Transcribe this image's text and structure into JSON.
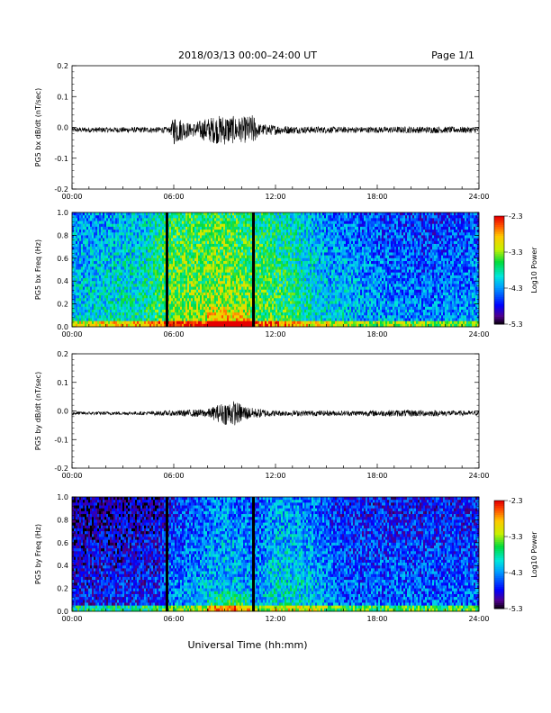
{
  "header": {
    "title": "2018/03/13  00:00–24:00 UT",
    "page": "Page 1/1"
  },
  "xaxis": {
    "title": "Universal Time (hh:mm)",
    "ticks": [
      "00:00",
      "06:00",
      "12:00",
      "18:00",
      "24:00"
    ]
  },
  "colorbar": {
    "ticks": [
      "-2.3",
      "-3.3",
      "-4.3",
      "-5.3"
    ],
    "label": "Log10 Power"
  },
  "chart_data": [
    {
      "type": "line",
      "title": "",
      "ylabel": "PG5 bx dB/dt (nT/sec)",
      "xlim": [
        0,
        24
      ],
      "ylim": [
        -0.2,
        0.2
      ],
      "yticks": [
        "0.2",
        "0.1",
        "0.0",
        "-0.1",
        "-0.2"
      ],
      "envelope": [
        {
          "hour": 0,
          "amp": 0.008
        },
        {
          "hour": 2,
          "amp": 0.009
        },
        {
          "hour": 4,
          "amp": 0.009
        },
        {
          "hour": 5.8,
          "amp": 0.01
        },
        {
          "hour": 6,
          "amp": 0.05
        },
        {
          "hour": 7,
          "amp": 0.02
        },
        {
          "hour": 8,
          "amp": 0.04
        },
        {
          "hour": 9,
          "amp": 0.05
        },
        {
          "hour": 10,
          "amp": 0.04
        },
        {
          "hour": 10.7,
          "amp": 0.05
        },
        {
          "hour": 11,
          "amp": 0.02
        },
        {
          "hour": 13,
          "amp": 0.012
        },
        {
          "hour": 16,
          "amp": 0.01
        },
        {
          "hour": 18,
          "amp": 0.01
        },
        {
          "hour": 20,
          "amp": 0.011
        },
        {
          "hour": 24,
          "amp": 0.01
        }
      ]
    },
    {
      "type": "heatmap",
      "title": "",
      "ylabel": "PG5 bx Freq (Hz)",
      "xlim": [
        0,
        24
      ],
      "ylim": [
        0,
        1
      ],
      "yticks": [
        "1.0",
        "0.8",
        "0.6",
        "0.4",
        "0.2",
        "0.0"
      ],
      "zlim": [
        -5.3,
        -2.3
      ],
      "gaps_hours": [
        5.6,
        10.7
      ],
      "level_profile": [
        {
          "hour": 0,
          "level": -4.0
        },
        {
          "hour": 4,
          "level": -3.8
        },
        {
          "hour": 6,
          "level": -3.3
        },
        {
          "hour": 9,
          "level": -3.2
        },
        {
          "hour": 11,
          "level": -3.4
        },
        {
          "hour": 13,
          "level": -3.6
        },
        {
          "hour": 15,
          "level": -4.0
        },
        {
          "hour": 18,
          "level": -4.2
        },
        {
          "hour": 21,
          "level": -4.3
        },
        {
          "hour": 24,
          "level": -4.2
        }
      ]
    },
    {
      "type": "line",
      "title": "",
      "ylabel": "PG5 by dB/dt (nT/sec)",
      "xlim": [
        0,
        24
      ],
      "ylim": [
        -0.2,
        0.2
      ],
      "yticks": [
        "0.2",
        "0.1",
        "0.0",
        "-0.1",
        "-0.2"
      ],
      "envelope": [
        {
          "hour": 0,
          "amp": 0.006
        },
        {
          "hour": 4,
          "amp": 0.006
        },
        {
          "hour": 6,
          "amp": 0.01
        },
        {
          "hour": 8,
          "amp": 0.015
        },
        {
          "hour": 9,
          "amp": 0.04
        },
        {
          "hour": 9.5,
          "amp": 0.045
        },
        {
          "hour": 10.5,
          "amp": 0.02
        },
        {
          "hour": 12,
          "amp": 0.01
        },
        {
          "hour": 16,
          "amp": 0.009
        },
        {
          "hour": 20,
          "amp": 0.012
        },
        {
          "hour": 24,
          "amp": 0.008
        }
      ]
    },
    {
      "type": "heatmap",
      "title": "",
      "ylabel": "PG5 by Freq (Hz)",
      "xlim": [
        0,
        24
      ],
      "ylim": [
        0,
        1
      ],
      "yticks": [
        "1.0",
        "0.8",
        "0.6",
        "0.4",
        "0.2",
        "0.0"
      ],
      "zlim": [
        -5.3,
        -2.3
      ],
      "gaps_hours": [
        5.6,
        10.7
      ],
      "level_profile": [
        {
          "hour": 0,
          "level": -4.7
        },
        {
          "hour": 5,
          "level": -4.6
        },
        {
          "hour": 6,
          "level": -4.3
        },
        {
          "hour": 9,
          "level": -4.0
        },
        {
          "hour": 11,
          "level": -4.2
        },
        {
          "hour": 12,
          "level": -3.9
        },
        {
          "hour": 14,
          "level": -4.0
        },
        {
          "hour": 16,
          "level": -4.4
        },
        {
          "hour": 20,
          "level": -4.4
        },
        {
          "hour": 24,
          "level": -4.4
        }
      ]
    }
  ]
}
